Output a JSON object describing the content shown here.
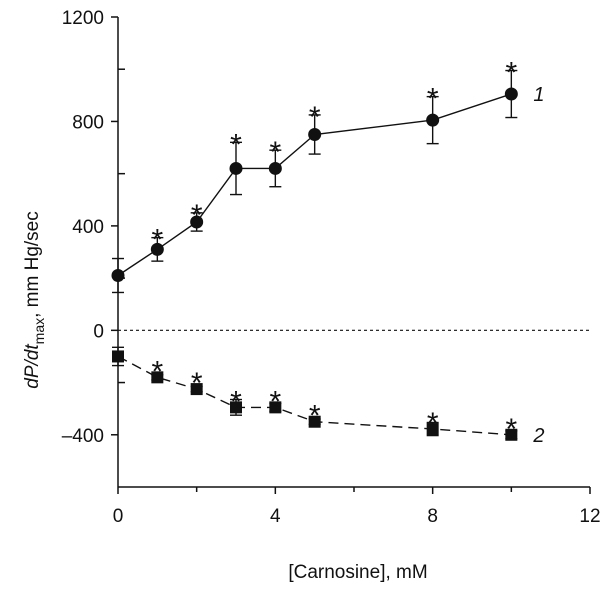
{
  "chart_data": {
    "type": "line",
    "xlabel": "[Carnosine], mM",
    "ylabel": {
      "parts": [
        "dP/dt",
        "max",
        ", mm Hg/sec"
      ]
    },
    "xlim": [
      0,
      12
    ],
    "ylim": [
      -600,
      1200
    ],
    "x_ticks": [
      0,
      4,
      8,
      12
    ],
    "x_minor_ticks": [
      2,
      6,
      10
    ],
    "y_ticks": [
      -400,
      0,
      400,
      800,
      1200
    ],
    "y_minor_ticks": [
      -200,
      200,
      600,
      1000
    ],
    "y_tick_labels": [
      "–400",
      "0",
      "400",
      "800",
      "1200"
    ],
    "x_tick_labels": [
      "0",
      "4",
      "8",
      "12"
    ],
    "reference_line": {
      "y": 0,
      "style": "dotted"
    },
    "grid": false,
    "series": [
      {
        "name": "1",
        "marker": "circle",
        "line_style": "solid",
        "x": [
          0,
          1,
          2,
          3,
          4,
          5,
          8,
          10
        ],
        "y": [
          210,
          310,
          415,
          620,
          620,
          750,
          805,
          905
        ],
        "error": [
          65,
          45,
          35,
          100,
          70,
          75,
          90,
          90
        ],
        "significant": [
          false,
          true,
          true,
          true,
          true,
          true,
          true,
          true
        ]
      },
      {
        "name": "2",
        "marker": "square",
        "line_style": "dashed",
        "x": [
          0,
          1,
          2,
          3,
          4,
          5,
          8,
          10
        ],
        "y": [
          -100,
          -180,
          -225,
          -295,
          -295,
          -350,
          -378,
          -400
        ],
        "error": [
          35,
          10,
          10,
          30,
          15,
          10,
          25,
          15
        ],
        "significant": [
          false,
          true,
          true,
          true,
          true,
          true,
          true,
          true
        ]
      }
    ],
    "significance_symbol": "*",
    "colors": {
      "ink": "#111111"
    }
  }
}
